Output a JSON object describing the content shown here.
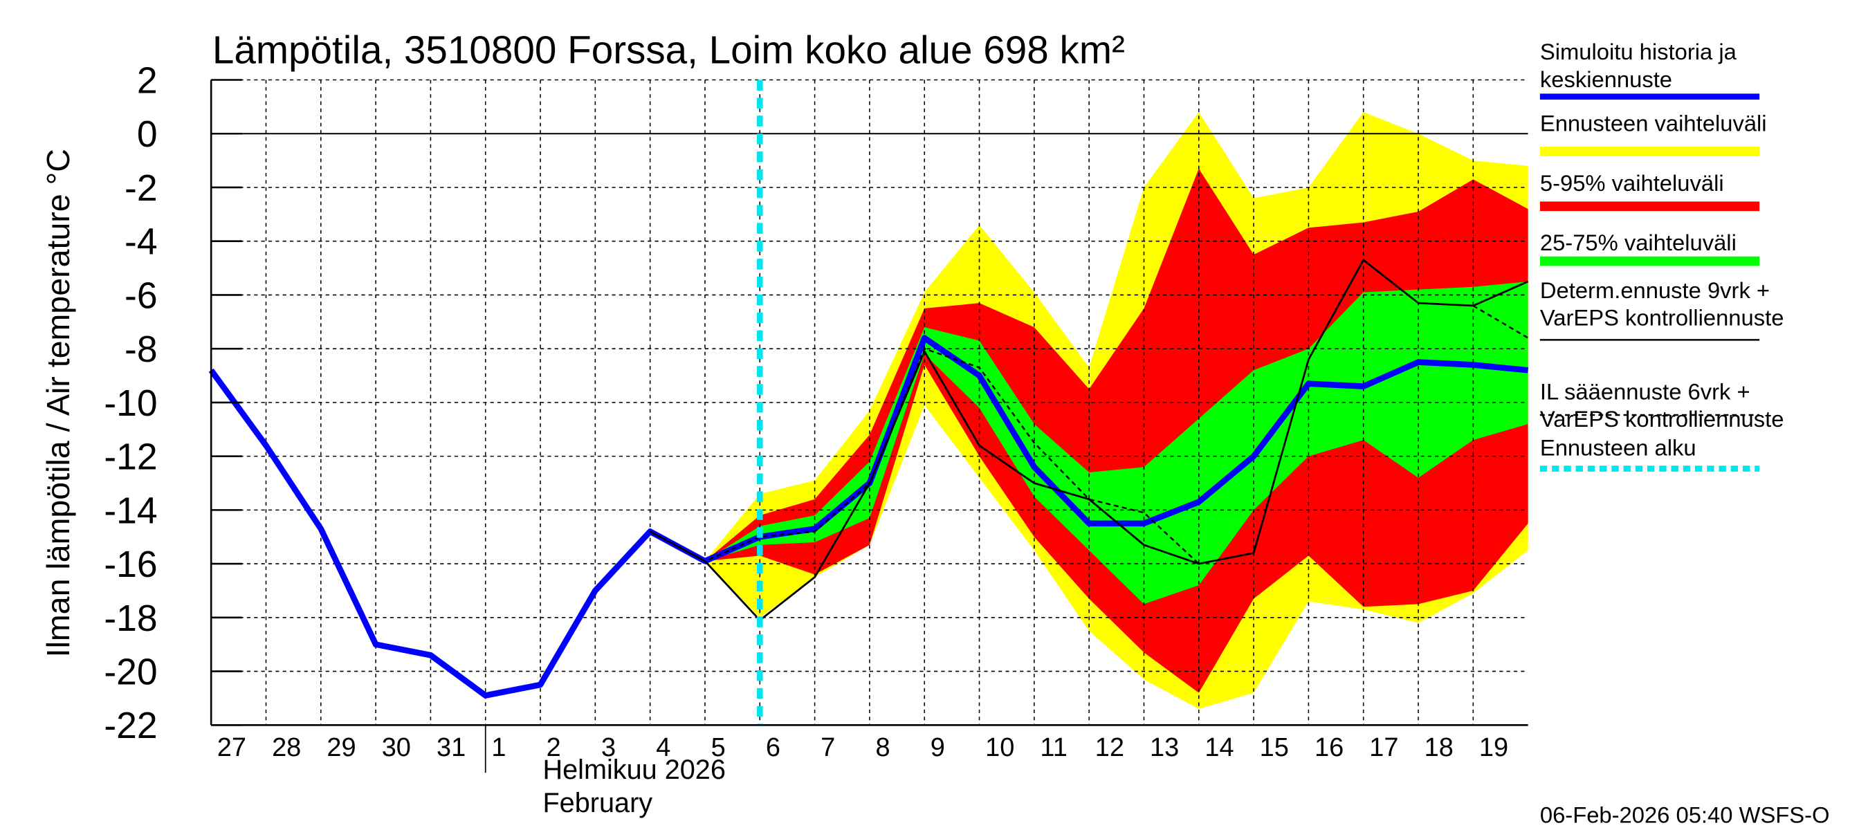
{
  "chart_data": {
    "type": "area",
    "title": "Lämpötila, 3510800 Forssa, Loim koko alue 698 km²",
    "ylabel": "Ilman lämpötila / Air temperature    °C",
    "ylim": [
      -22,
      2
    ],
    "yticks": [
      2,
      0,
      -2,
      -4,
      -6,
      -8,
      -10,
      -12,
      -14,
      -16,
      -18,
      -20,
      -22
    ],
    "xlim": [
      "2026-01-27",
      "2026-02-20"
    ],
    "xtick_labels": [
      "27",
      "28",
      "29",
      "30",
      "31",
      "1",
      "2",
      "3",
      "4",
      "5",
      "6",
      "7",
      "8",
      "9",
      "10",
      "11",
      "12",
      "13",
      "14",
      "15",
      "16",
      "17",
      "18",
      "19"
    ],
    "month_label_fi": "Helmikuu  2026",
    "month_label_en": "February",
    "grid": true,
    "legend_position": "right",
    "forecast_start": "2026-02-06",
    "timestamp": "06-Feb-2026 05:40 WSFS-O",
    "colors": {
      "sim": "#0000ff",
      "range": "#ffff00",
      "p5_95": "#ff0000",
      "p25_75": "#00ff00",
      "determ": "#000000",
      "il": "#000000",
      "start": "#00e5ee"
    },
    "legend": [
      {
        "key": "sim",
        "lines": [
          "Simuloitu historia ja",
          "keskiennuste"
        ]
      },
      {
        "key": "range",
        "lines": [
          "Ennusteen vaihteluväli"
        ]
      },
      {
        "key": "p5_95",
        "lines": [
          "5-95% vaihteluväli"
        ]
      },
      {
        "key": "p25_75",
        "lines": [
          "25-75% vaihteluväli"
        ]
      },
      {
        "key": "determ",
        "lines": [
          "Determ.ennuste 9vrk +",
          "VarEPS kontrolliennuste"
        ]
      },
      {
        "key": "il",
        "lines": [
          "IL sääennuste 6vrk  +",
          "  VarEPS kontrolliennuste"
        ]
      },
      {
        "key": "start",
        "lines": [
          "Ennusteen alku"
        ]
      }
    ],
    "band_x": [
      "2026-02-05",
      "2026-02-06",
      "2026-02-07",
      "2026-02-08",
      "2026-02-09",
      "2026-02-10",
      "2026-02-11",
      "2026-02-12",
      "2026-02-13",
      "2026-02-14",
      "2026-02-15",
      "2026-02-16",
      "2026-02-17",
      "2026-02-18",
      "2026-02-19",
      "2026-02-20"
    ],
    "bands": {
      "range": {
        "upper": [
          -15.9,
          -13.4,
          -12.9,
          -10.3,
          -5.9,
          -3.4,
          -5.9,
          -8.7,
          -2.0,
          0.8,
          -2.4,
          -2.0,
          0.8,
          0.0,
          -1.0,
          -1.2
        ],
        "lower": [
          -15.9,
          -18.0,
          -16.5,
          -15.3,
          -10.1,
          -12.8,
          -15.5,
          -18.5,
          -20.3,
          -21.4,
          -20.8,
          -17.4,
          -17.7,
          -18.2,
          -17.1,
          -15.5
        ]
      },
      "p5_95": {
        "upper": [
          -15.9,
          -14.2,
          -13.6,
          -11.2,
          -6.5,
          -6.3,
          -7.2,
          -9.5,
          -6.5,
          -1.3,
          -4.5,
          -3.5,
          -3.3,
          -2.9,
          -1.7,
          -2.8
        ],
        "lower": [
          -15.9,
          -15.7,
          -16.4,
          -15.3,
          -8.6,
          -12.0,
          -15.0,
          -17.3,
          -19.3,
          -20.8,
          -17.3,
          -15.7,
          -17.6,
          -17.5,
          -17.0,
          -14.5
        ]
      },
      "p25_75": {
        "upper": [
          -15.9,
          -14.6,
          -14.2,
          -12.2,
          -7.2,
          -7.7,
          -10.8,
          -12.6,
          -12.4,
          -10.6,
          -8.8,
          -8.0,
          -5.9,
          -5.8,
          -5.7,
          -5.5
        ],
        "lower": [
          -15.9,
          -15.3,
          -15.2,
          -14.3,
          -8.2,
          -10.2,
          -13.5,
          -15.5,
          -17.5,
          -16.8,
          -14.0,
          -12.0,
          -11.4,
          -12.8,
          -11.4,
          -10.8
        ]
      }
    },
    "series": [
      {
        "key": "sim",
        "x": [
          "2026-01-27",
          "2026-01-28",
          "2026-01-29",
          "2026-01-30",
          "2026-01-31",
          "2026-02-01",
          "2026-02-02",
          "2026-02-03",
          "2026-02-04",
          "2026-02-05",
          "2026-02-06",
          "2026-02-07",
          "2026-02-08",
          "2026-02-09",
          "2026-02-10",
          "2026-02-11",
          "2026-02-12",
          "2026-02-13",
          "2026-02-14",
          "2026-02-15",
          "2026-02-16",
          "2026-02-17",
          "2026-02-18",
          "2026-02-19",
          "2026-02-20"
        ],
        "values": [
          -8.8,
          -11.6,
          -14.7,
          -19.0,
          -19.4,
          -20.9,
          -20.5,
          -17.0,
          -14.8,
          -15.9,
          -15.0,
          -14.7,
          -13.0,
          -7.6,
          -9.0,
          -12.4,
          -14.5,
          -14.5,
          -13.7,
          -12.0,
          -9.3,
          -9.4,
          -8.5,
          -8.6,
          -8.8
        ]
      },
      {
        "key": "determ",
        "x": [
          "2026-02-04",
          "2026-02-05",
          "2026-02-06",
          "2026-02-07",
          "2026-02-08",
          "2026-02-09",
          "2026-02-10",
          "2026-02-11",
          "2026-02-12",
          "2026-02-13",
          "2026-02-14",
          "2026-02-15",
          "2026-02-16",
          "2026-02-17",
          "2026-02-18",
          "2026-02-19",
          "2026-02-20"
        ],
        "values": [
          -14.8,
          -15.9,
          -18.1,
          -16.5,
          -13.0,
          -8.1,
          -11.6,
          -13.0,
          -13.6,
          -15.3,
          -16.0,
          -15.6,
          -8.4,
          -4.7,
          -6.3,
          -6.4,
          -5.5
        ]
      },
      {
        "key": "il",
        "x": [
          "2026-02-04",
          "2026-02-05",
          "2026-02-06",
          "2026-02-07",
          "2026-02-08",
          "2026-02-09",
          "2026-02-10",
          "2026-02-11",
          "2026-02-12",
          "2026-02-13",
          "2026-02-14"
        ],
        "values": [
          -14.8,
          -15.9,
          -15.0,
          -14.8,
          -13.0,
          -8.0,
          -8.7,
          -11.5,
          -13.6,
          -14.1,
          -16.0
        ]
      },
      {
        "key": "il_tail",
        "x": [
          "2026-02-19",
          "2026-02-20"
        ],
        "values": [
          -6.4,
          -7.6
        ]
      }
    ]
  }
}
